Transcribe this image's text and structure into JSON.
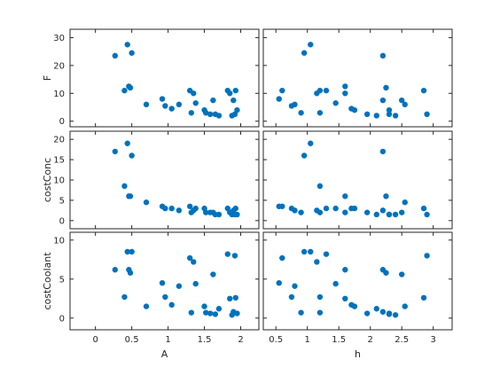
{
  "chart_data": {
    "type": "scatter",
    "layout": "matrix",
    "marker_color": "#0072BD",
    "grid": false,
    "x_vars": [
      {
        "label": "A",
        "xlim": [
          -0.35,
          2.25
        ],
        "ticks": [
          0,
          0.5,
          1,
          1.5,
          2
        ],
        "tick_labels": [
          "0",
          "0.5",
          "1",
          "1.5",
          "2"
        ]
      },
      {
        "label": "h",
        "xlim": [
          0.3,
          3.3
        ],
        "ticks": [
          0.5,
          1,
          1.5,
          2,
          2.5,
          3
        ],
        "tick_labels": [
          "0.5",
          "1",
          "1.5",
          "2",
          "2.5",
          "3"
        ]
      }
    ],
    "y_vars": [
      {
        "label": "F",
        "ylim": [
          -2,
          33
        ],
        "ticks": [
          0,
          10,
          20,
          30
        ],
        "tick_labels": [
          "0",
          "10",
          "20",
          "30"
        ]
      },
      {
        "label": "costConc",
        "ylim": [
          -2,
          22
        ],
        "ticks": [
          0,
          5,
          10,
          15,
          20
        ],
        "tick_labels": [
          "0",
          "5",
          "10",
          "15",
          "20"
        ]
      },
      {
        "label": "costCoolant",
        "ylim": [
          -1.5,
          11
        ],
        "ticks": [
          0,
          5,
          10
        ],
        "tick_labels": [
          "0",
          "5",
          "10"
        ]
      }
    ],
    "observations": {
      "A": [
        0.27,
        0.4,
        0.44,
        0.48,
        0.46,
        0.5,
        0.7,
        0.92,
        0.96,
        1.05,
        1.15,
        1.3,
        1.32,
        1.38,
        1.35,
        1.5,
        1.52,
        1.58,
        1.62,
        1.65,
        1.7,
        1.82,
        1.85,
        1.88,
        1.9,
        1.92,
        1.93,
        1.95
      ],
      "h": [
        2.2,
        1.2,
        1.05,
        2.25,
        1.6,
        0.95,
        2.55,
        0.55,
        0.75,
        1.7,
        0.8,
        0.6,
        1.2,
        1.45,
        1.15,
        1.75,
        0.9,
        1.95,
        2.5,
        2.3,
        2.1,
        1.3,
        1.6,
        2.4,
        2.2,
        2.9,
        2.85,
        2.3
      ],
      "F": [
        23.5,
        11.0,
        27.5,
        12.0,
        12.5,
        24.5,
        6.0,
        8.0,
        5.5,
        4.5,
        6.0,
        11.0,
        3.0,
        6.5,
        10.0,
        4.0,
        3.0,
        2.5,
        7.5,
        2.5,
        2.0,
        11.0,
        10.0,
        2.0,
        7.5,
        2.5,
        11.0,
        4.0
      ],
      "costConc": [
        17.0,
        8.5,
        19.0,
        6.0,
        6.0,
        16.0,
        4.5,
        3.5,
        3.0,
        3.0,
        2.5,
        3.5,
        2.0,
        3.0,
        2.5,
        3.0,
        2.0,
        2.0,
        2.0,
        1.5,
        1.5,
        3.0,
        2.0,
        1.5,
        2.5,
        1.5,
        3.0,
        1.5
      ],
      "costCoolant": [
        6.2,
        2.7,
        8.5,
        5.8,
        6.2,
        8.5,
        1.5,
        4.5,
        2.7,
        1.7,
        4.1,
        7.7,
        0.7,
        4.4,
        7.2,
        1.5,
        0.7,
        0.6,
        5.6,
        0.5,
        1.2,
        8.2,
        2.5,
        0.4,
        0.8,
        8.0,
        2.6,
        0.6
      ]
    }
  }
}
